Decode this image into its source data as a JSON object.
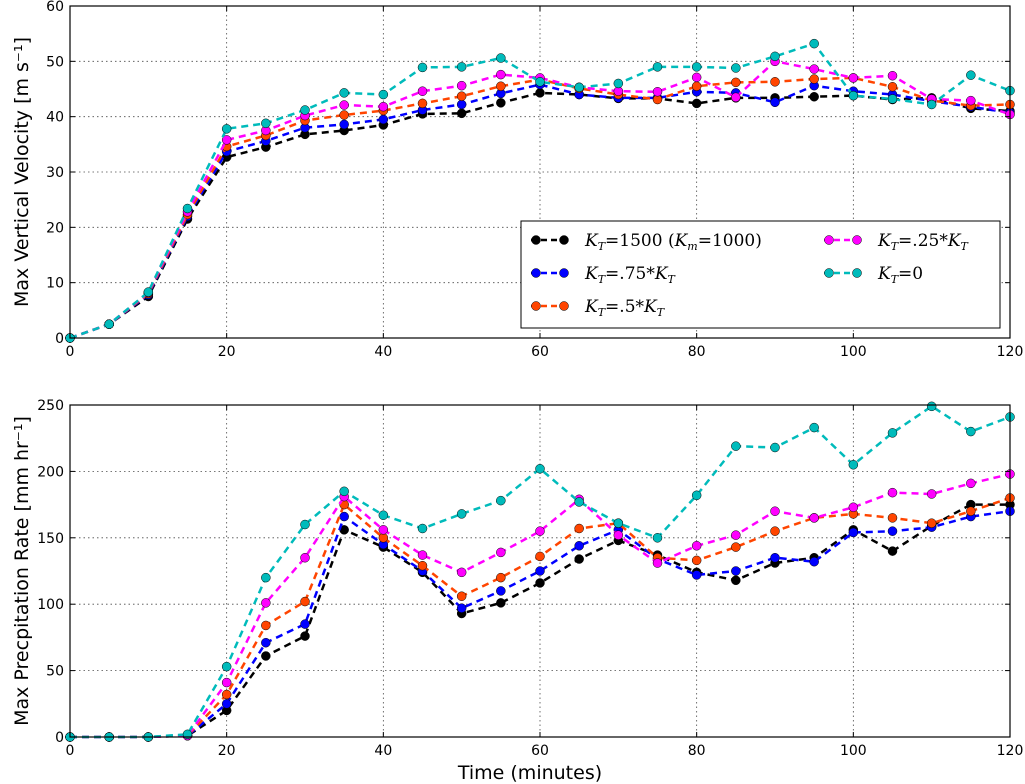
{
  "chart_data": [
    {
      "type": "line",
      "ylabel": "Max Vertical Velocity [m s⁻¹]",
      "xlabel": "",
      "xlim": [
        0,
        120
      ],
      "ylim": [
        0,
        60
      ],
      "xticks": [
        0,
        20,
        40,
        60,
        80,
        100,
        120
      ],
      "yticks": [
        0,
        10,
        20,
        30,
        40,
        50,
        60
      ],
      "grid": true,
      "legend": "bottom-right, 2 columns",
      "x": [
        0,
        5,
        10,
        15,
        20,
        25,
        30,
        35,
        40,
        45,
        50,
        55,
        60,
        65,
        70,
        75,
        80,
        85,
        90,
        95,
        100,
        105,
        110,
        115,
        120
      ],
      "series": [
        {
          "name": "K_T=1500 (K_m=1000)",
          "color": "#000000",
          "values": [
            0,
            2.5,
            7.5,
            21.5,
            32.7,
            34.5,
            36.8,
            37.5,
            38.5,
            40.5,
            40.6,
            42.5,
            44.3,
            44,
            43.3,
            43.3,
            42.4,
            43.4,
            43.4,
            43.6,
            43.8,
            43.1,
            43.4,
            41.5,
            41
          ]
        },
        {
          "name": "K_T=.75*K_T",
          "color": "#0000ff",
          "values": [
            0,
            2.5,
            7.8,
            22,
            33.7,
            35.6,
            38.0,
            38.6,
            39.5,
            41.2,
            42.2,
            44.2,
            45.8,
            44,
            43.4,
            43.4,
            44.5,
            44.3,
            42.6,
            45.6,
            44.6,
            44,
            42.8,
            41.8,
            40.7
          ]
        },
        {
          "name": "K_T=.5*K_T",
          "color": "#ff4500",
          "values": [
            0,
            2.5,
            8.0,
            22.3,
            34.6,
            36.6,
            39.3,
            40.3,
            41.1,
            42.4,
            43.7,
            45.5,
            46.7,
            45.1,
            44.0,
            43.1,
            45.5,
            46.2,
            46.3,
            46.8,
            47.0,
            45.4,
            42.9,
            42.0,
            42.2
          ]
        },
        {
          "name": "K_T=.25*K_T",
          "color": "#ff00ff",
          "values": [
            0,
            2.5,
            8.2,
            22.8,
            35.8,
            37.5,
            40.2,
            42.1,
            41.8,
            44.6,
            45.6,
            47.6,
            47.0,
            45.3,
            44.6,
            44.5,
            47.1,
            43.5,
            50.0,
            48.6,
            47.0,
            47.4,
            43.2,
            42.9,
            40.4
          ]
        },
        {
          "name": "K_T=0",
          "color": "#00bbbb",
          "values": [
            0,
            2.5,
            8.3,
            23.4,
            37.8,
            38.8,
            41.2,
            44.3,
            44.0,
            48.9,
            49.0,
            50.6,
            46.3,
            45.3,
            46.0,
            49.0,
            49.0,
            48.8,
            50.9,
            53.2,
            43.8,
            43.2,
            42.2,
            47.5,
            44.7
          ]
        }
      ]
    },
    {
      "type": "line",
      "ylabel": "Max Precpitation Rate [mm hr⁻¹]",
      "xlabel": "Time (minutes)",
      "xlim": [
        0,
        120
      ],
      "ylim": [
        0,
        250
      ],
      "xticks": [
        0,
        20,
        40,
        60,
        80,
        100,
        120
      ],
      "yticks": [
        0,
        50,
        100,
        150,
        200,
        250
      ],
      "grid": true,
      "x": [
        0,
        5,
        10,
        15,
        20,
        25,
        30,
        35,
        40,
        45,
        50,
        55,
        60,
        65,
        70,
        75,
        80,
        85,
        90,
        95,
        100,
        105,
        110,
        115,
        120
      ],
      "series": [
        {
          "color": "#000000",
          "values": [
            0,
            0,
            0,
            1,
            20,
            61,
            76,
            156,
            143,
            124,
            93,
            101,
            116,
            134,
            148,
            137,
            124,
            118,
            131,
            135,
            156,
            140,
            159,
            175,
            175
          ]
        },
        {
          "color": "#0000ff",
          "values": [
            0,
            0,
            0,
            1,
            25,
            71,
            85,
            166,
            145,
            125,
            97,
            110,
            125,
            144,
            156,
            134,
            122,
            125,
            135,
            132,
            154,
            155,
            158,
            166,
            170
          ]
        },
        {
          "color": "#ff4500",
          "values": [
            0,
            0,
            0,
            1,
            32,
            84,
            102,
            175,
            150,
            129,
            106,
            120,
            136,
            157,
            161,
            135,
            133,
            143,
            155,
            165,
            168,
            165,
            161,
            170,
            180
          ]
        },
        {
          "color": "#ff00ff",
          "values": [
            0,
            0,
            0,
            1,
            41,
            101,
            135,
            181,
            156,
            137,
            124,
            139,
            155,
            179,
            152,
            131,
            144,
            152,
            170,
            165,
            173,
            184,
            183,
            191,
            198
          ]
        },
        {
          "color": "#00bbbb",
          "values": [
            0,
            0,
            0,
            2,
            53,
            120,
            160,
            185,
            167,
            157,
            168,
            178,
            202,
            177,
            161,
            150,
            182,
            219,
            218,
            233,
            205,
            229,
            249,
            230,
            241
          ]
        }
      ]
    }
  ]
}
